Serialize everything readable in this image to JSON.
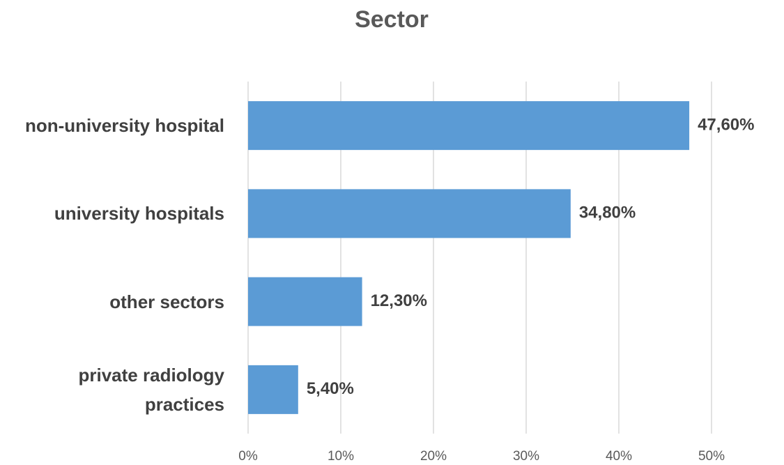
{
  "chart_data": {
    "type": "bar",
    "orientation": "horizontal",
    "title": "Sector",
    "categories": [
      "non-university hospital",
      "university hospitals",
      "other sectors",
      "private radiology practices"
    ],
    "values": [
      47.6,
      34.8,
      12.3,
      5.4
    ],
    "value_labels": [
      "47,60%",
      "34,80%",
      "12,30%",
      "5,40%"
    ],
    "color": "#5b9bd5",
    "xlim": [
      0,
      50
    ],
    "xticks": [
      {
        "value": 0,
        "label": "0%"
      },
      {
        "value": 10,
        "label": "10%"
      },
      {
        "value": 20,
        "label": "20%"
      },
      {
        "value": 30,
        "label": "30%"
      },
      {
        "value": 40,
        "label": "40%"
      },
      {
        "value": 50,
        "label": "50%"
      }
    ],
    "grid": true
  }
}
